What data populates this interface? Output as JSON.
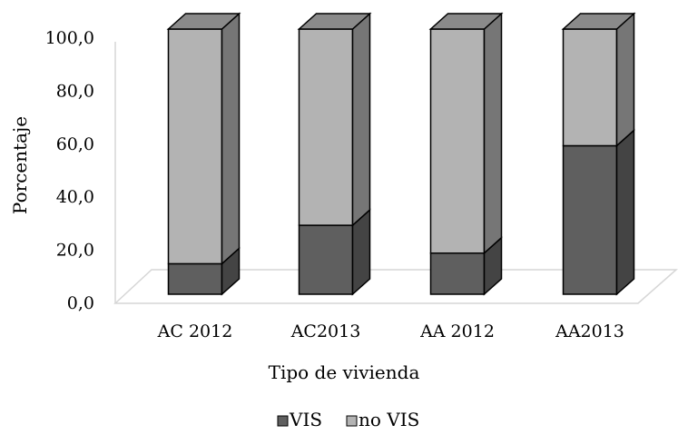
{
  "chart_data": {
    "type": "bar",
    "stacked": true,
    "style": "3d",
    "categories": [
      "AC 2012",
      "AC2013",
      "AA 2012",
      "AA2013"
    ],
    "series": [
      {
        "name": "VIS",
        "values": [
          11.5,
          26.0,
          15.5,
          56.0
        ],
        "color": "#5f5f5f"
      },
      {
        "name": "no VIS",
        "values": [
          88.5,
          74.0,
          84.5,
          44.0
        ],
        "color": "#b3b3b3"
      }
    ],
    "xlabel": "Tipo de vivienda",
    "ylabel": "Porcentaje",
    "ylim": [
      0,
      100
    ],
    "yticks": [
      "0,0",
      "20,0",
      "40,0",
      "60,0",
      "80,0",
      "100,0"
    ],
    "grid": false,
    "legend": "bottom"
  }
}
